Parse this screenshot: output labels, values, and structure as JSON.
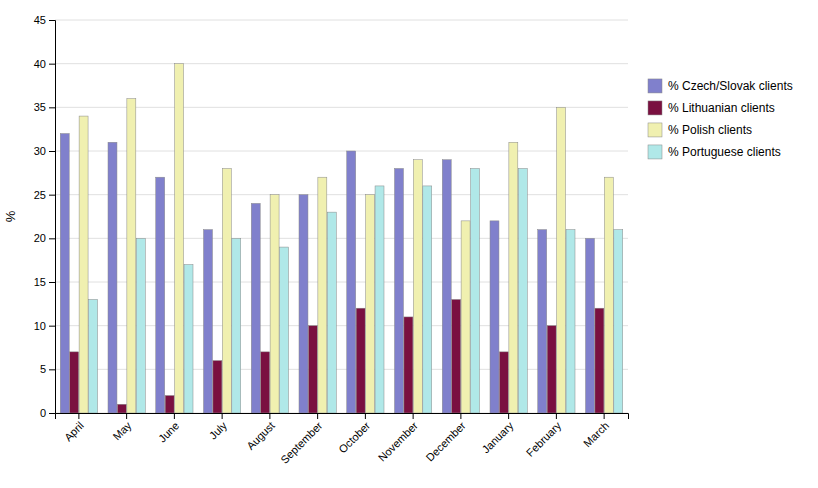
{
  "chart_data": {
    "type": "bar",
    "ylabel": "%",
    "categories": [
      "April",
      "May",
      "June",
      "July",
      "August",
      "September",
      "October",
      "November",
      "December",
      "January",
      "February",
      "March"
    ],
    "series": [
      {
        "name": "% Czech/Slovak clients",
        "color": "#8080cc",
        "values": [
          32,
          31,
          27,
          21,
          24,
          25,
          30,
          28,
          29,
          22,
          21,
          20
        ]
      },
      {
        "name": "% Lithuanian clients",
        "color": "#7a1040",
        "values": [
          7,
          1,
          2,
          6,
          7,
          10,
          12,
          11,
          13,
          7,
          10,
          12
        ]
      },
      {
        "name": "% Polish clients",
        "color": "#f0f0b0",
        "values": [
          34,
          36,
          40,
          28,
          25,
          27,
          25,
          29,
          22,
          31,
          35,
          27
        ]
      },
      {
        "name": "% Portuguese clients",
        "color": "#b0e8e8",
        "values": [
          13,
          20,
          17,
          20,
          19,
          23,
          26,
          26,
          28,
          28,
          21,
          21
        ]
      }
    ],
    "ylim": [
      0,
      45
    ],
    "yticks": [
      0,
      5,
      10,
      15,
      20,
      25,
      30,
      35,
      40,
      45
    ],
    "grid": true,
    "legend": "right"
  }
}
